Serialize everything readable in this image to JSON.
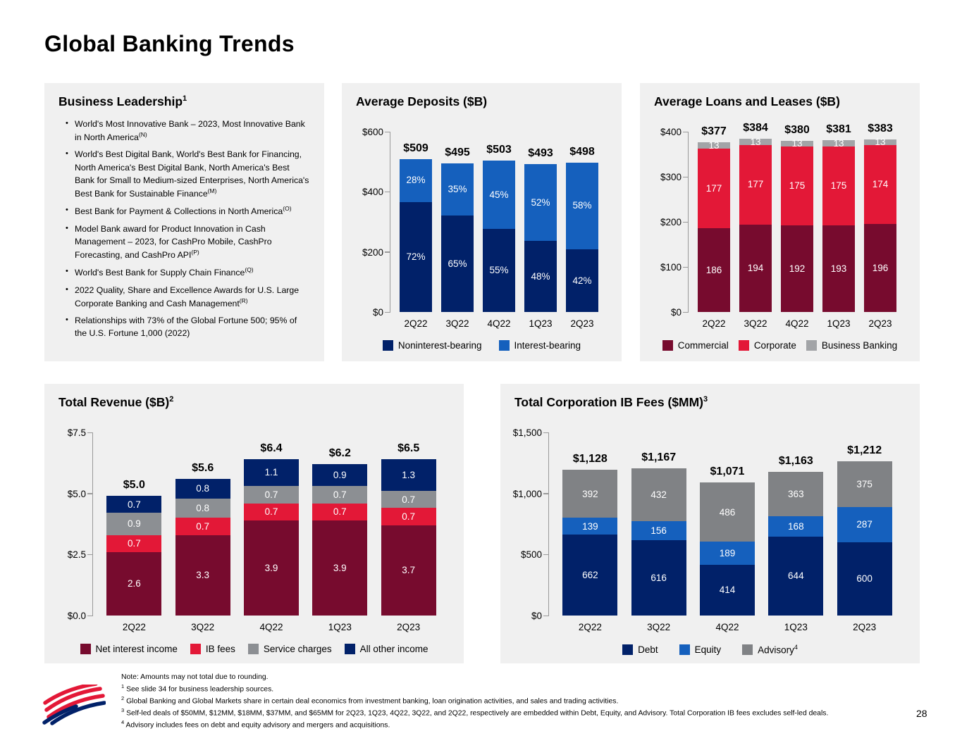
{
  "page": {
    "title": "Global Banking Trends",
    "page_number": "28"
  },
  "colors": {
    "navy": "#012169",
    "blue": "#1560BD",
    "maroon": "#770B2E",
    "red": "#E31837",
    "gray": "#8C8F93",
    "gray_light": "#A2A4A7",
    "gray_dark": "#808285",
    "panel_bg": "#F0F0F0"
  },
  "business_leadership": {
    "title": "Business Leadership",
    "title_sup": "1",
    "bullets": [
      {
        "text": "World's Most Innovative Bank – 2023, Most Innovative Bank in North America",
        "sup": "(N)"
      },
      {
        "text": "World's Best Digital Bank, World's Best Bank for Financing, North America's Best Digital Bank, North America's Best Bank for Small to Medium-sized Enterprises, North America's Best Bank for Sustainable Finance",
        "sup": "(M)"
      },
      {
        "text": "Best Bank for Payment & Collections in North America",
        "sup": "(O)"
      },
      {
        "text": "Model Bank award for Product Innovation in Cash Management – 2023, for CashPro Mobile, CashPro Forecasting, and CashPro API",
        "sup": "(P)"
      },
      {
        "text": "World's Best Bank for Supply Chain Finance",
        "sup": "(Q)"
      },
      {
        "text": "2022 Quality, Share and Excellence Awards for U.S. Large Corporate Banking and Cash Management",
        "sup": "(R)"
      },
      {
        "text": "Relationships with 73% of the Global Fortune 500; 95% of the U.S. Fortune 1,000 (2022)",
        "sup": ""
      }
    ]
  },
  "chart_data": [
    {
      "id": "average-deposits",
      "type": "bar",
      "stacked": true,
      "title": "Average Deposits ($B)",
      "title_sup": "",
      "categories": [
        "2Q22",
        "3Q22",
        "4Q22",
        "1Q23",
        "2Q23"
      ],
      "totals_display": [
        "$509",
        "$495",
        "$503",
        "$493",
        "$498"
      ],
      "totals_numeric": [
        509,
        495,
        503,
        493,
        498
      ],
      "percent_of_total": true,
      "series": [
        {
          "name": "Noninterest-bearing",
          "name_sup": "",
          "color": "navy",
          "values": [
            72,
            65,
            55,
            48,
            42
          ],
          "labels": [
            "72%",
            "65%",
            "55%",
            "48%",
            "42%"
          ]
        },
        {
          "name": "Interest-bearing",
          "name_sup": "",
          "color": "blue",
          "values": [
            28,
            35,
            45,
            52,
            58
          ],
          "labels": [
            "28%",
            "35%",
            "45%",
            "52%",
            "58%"
          ]
        }
      ],
      "ylim": [
        0,
        600
      ],
      "tick_values": [
        0,
        200,
        400,
        600
      ],
      "tick_labels": [
        "$0",
        "$200",
        "$400",
        "$600"
      ],
      "legend_position": "bottom"
    },
    {
      "id": "average-loans-and-leases",
      "type": "bar",
      "stacked": true,
      "title": "Average Loans and Leases ($B)",
      "title_sup": "",
      "categories": [
        "2Q22",
        "3Q22",
        "4Q22",
        "1Q23",
        "2Q23"
      ],
      "totals_display": [
        "$377",
        "$384",
        "$380",
        "$381",
        "$383"
      ],
      "totals_numeric": [
        377,
        384,
        380,
        381,
        383
      ],
      "percent_of_total": false,
      "series": [
        {
          "name": "Commercial",
          "name_sup": "",
          "color": "maroon",
          "values": [
            186,
            194,
            192,
            193,
            196
          ]
        },
        {
          "name": "Corporate",
          "name_sup": "",
          "color": "red",
          "values": [
            177,
            177,
            175,
            175,
            174
          ]
        },
        {
          "name": "Business Banking",
          "name_sup": "",
          "color": "gray_light",
          "values": [
            13,
            13,
            13,
            13,
            13
          ]
        }
      ],
      "ylim": [
        0,
        400
      ],
      "tick_values": [
        0,
        100,
        200,
        300,
        400
      ],
      "tick_labels": [
        "$0",
        "$100",
        "$200",
        "$300",
        "$400"
      ],
      "legend_position": "bottom"
    },
    {
      "id": "total-revenue",
      "type": "bar",
      "stacked": true,
      "title": "Total Revenue ($B)",
      "title_sup": "2",
      "categories": [
        "2Q22",
        "3Q22",
        "4Q22",
        "1Q23",
        "2Q23"
      ],
      "totals_display": [
        "$5.0",
        "$5.6",
        "$6.4",
        "$6.2",
        "$6.5"
      ],
      "totals_numeric": [
        5.0,
        5.6,
        6.4,
        6.2,
        6.5
      ],
      "percent_of_total": false,
      "series": [
        {
          "name": "Net interest income",
          "name_sup": "",
          "color": "maroon",
          "values": [
            2.6,
            3.3,
            3.9,
            3.9,
            3.7
          ]
        },
        {
          "name": "IB fees",
          "name_sup": "",
          "color": "red",
          "values": [
            0.7,
            0.7,
            0.7,
            0.7,
            0.7
          ]
        },
        {
          "name": "Service charges",
          "name_sup": "",
          "color": "gray",
          "values": [
            0.9,
            0.8,
            0.7,
            0.7,
            0.7
          ]
        },
        {
          "name": "All other income",
          "name_sup": "",
          "color": "navy",
          "values": [
            0.7,
            0.8,
            1.1,
            0.9,
            1.3
          ]
        }
      ],
      "ylim": [
        0,
        7.5
      ],
      "tick_values": [
        0,
        2.5,
        5.0,
        7.5
      ],
      "tick_labels": [
        "$0.0",
        "$2.5",
        "$5.0",
        "$7.5"
      ],
      "legend_position": "bottom"
    },
    {
      "id": "total-corporation-ib-fees",
      "type": "bar",
      "stacked": true,
      "title": "Total Corporation IB Fees ($MM)",
      "title_sup": "3",
      "categories": [
        "2Q22",
        "3Q22",
        "4Q22",
        "1Q23",
        "2Q23"
      ],
      "totals_display": [
        "$1,128",
        "$1,167",
        "$1,071",
        "$1,163",
        "$1,212"
      ],
      "totals_numeric": [
        1128,
        1167,
        1071,
        1163,
        1212
      ],
      "percent_of_total": false,
      "series": [
        {
          "name": "Debt",
          "name_sup": "",
          "color": "navy",
          "values": [
            662,
            616,
            414,
            644,
            600
          ]
        },
        {
          "name": "Equity",
          "name_sup": "",
          "color": "blue",
          "values": [
            139,
            156,
            189,
            168,
            287
          ]
        },
        {
          "name": "Advisory",
          "name_sup": "4",
          "color": "gray_dark",
          "values": [
            392,
            432,
            486,
            363,
            375
          ]
        }
      ],
      "ylim": [
        0,
        1500
      ],
      "tick_values": [
        0,
        500,
        1000,
        1500
      ],
      "tick_labels": [
        "$0",
        "$500",
        "$1,000",
        "$1,500"
      ],
      "legend_position": "bottom"
    }
  ],
  "footnotes": [
    {
      "sup": "",
      "text": "Note: Amounts may not total due to rounding."
    },
    {
      "sup": "1",
      "text": "See slide 34 for business leadership sources."
    },
    {
      "sup": "2",
      "text": "Global Banking and Global Markets share in certain deal economics from investment banking, loan origination activities, and sales and trading activities."
    },
    {
      "sup": "3",
      "text": "Self-led deals of $50MM, $12MM, $18MM, $37MM, and $65MM for 2Q23, 1Q23, 4Q22, 3Q22, and 2Q22, respectively are embedded within Debt, Equity, and Advisory. Total Corporation IB fees excludes self-led deals."
    },
    {
      "sup": "4",
      "text": "Advisory includes fees on debt and equity advisory and mergers and acquisitions."
    }
  ]
}
